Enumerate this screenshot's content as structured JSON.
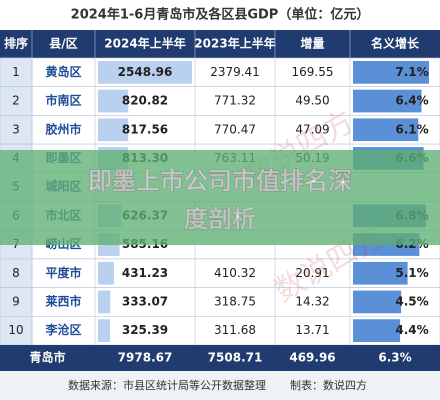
{
  "header": {
    "title": "2024年1-6月青岛市及各区县GDP（单位：亿元）"
  },
  "table": {
    "columns": [
      "排序",
      "县/区",
      "2024年上半年",
      "2023年上半年",
      "增量",
      "名义增长"
    ],
    "rows": [
      {
        "rank": "1",
        "name": "黄岛区",
        "h2024": "2548.96",
        "h2023": "2379.41",
        "delta": "169.55",
        "growth": "7.1%"
      },
      {
        "rank": "2",
        "name": "市南区",
        "h2024": "820.82",
        "h2023": "771.32",
        "delta": "49.50",
        "growth": "6.4%"
      },
      {
        "rank": "3",
        "name": "胶州市",
        "h2024": "817.56",
        "h2023": "770.47",
        "delta": "47.09",
        "growth": "6.1%"
      },
      {
        "rank": "4",
        "name": "即墨区",
        "h2024": "813.30",
        "h2023": "763.11",
        "delta": "50.19",
        "growth": "6.6%"
      },
      {
        "rank": "5",
        "name": "城阳区"
      },
      {
        "rank": "6",
        "name": "市北区",
        "h2024": "626.37",
        "growth": "6.8%"
      },
      {
        "rank": "7",
        "name": "崂山区",
        "h2024": "585.16",
        "growth": "6.2%"
      },
      {
        "rank": "8",
        "name": "平度市",
        "h2024": "431.23",
        "h2023": "410.32",
        "delta": "20.91",
        "growth": "5.1%"
      },
      {
        "rank": "9",
        "name": "莱西市",
        "h2024": "333.07",
        "h2023": "318.75",
        "delta": "14.32",
        "growth": "4.5%"
      },
      {
        "rank": "10",
        "name": "李沧区",
        "h2024": "325.39",
        "h2023": "311.68",
        "delta": "13.71",
        "growth": "4.4%"
      }
    ],
    "total": {
      "name": "青岛市",
      "h2024": "7978.67",
      "h2023": "7508.71",
      "delta": "469.96",
      "growth": "6.3%"
    }
  },
  "watermark": "数说四方",
  "overlay": {
    "lines": [
      "即墨上市公司市值排名深",
      "度剖析"
    ]
  },
  "footer": {
    "source": "数据来源：市县区统计局等公开数据整理",
    "author": "制表：数说四方"
  }
}
